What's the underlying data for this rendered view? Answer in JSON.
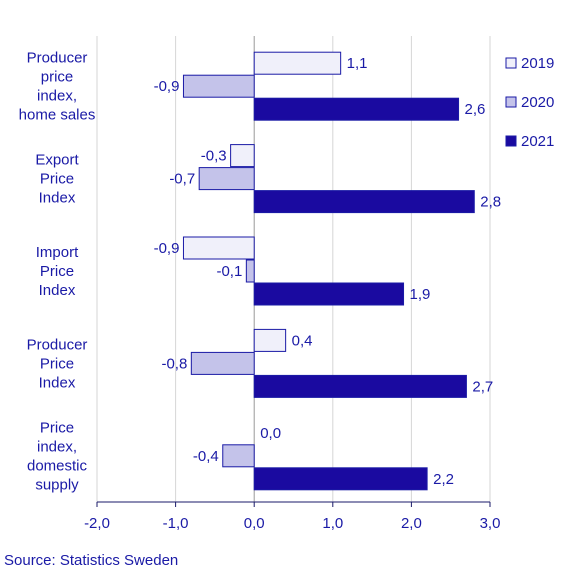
{
  "chart_data": {
    "type": "bar",
    "orientation": "horizontal",
    "categories": [
      [
        "Producer",
        "price",
        "index,",
        "home sales"
      ],
      [
        "Export",
        "Price",
        "Index"
      ],
      [
        "Import",
        "Price",
        "Index"
      ],
      [
        "Producer",
        "Price",
        "Index"
      ],
      [
        "Price",
        "index,",
        "domestic",
        "supply"
      ]
    ],
    "series": [
      {
        "name": "2019",
        "values": [
          1.1,
          -0.3,
          -0.9,
          0.4,
          0.0
        ],
        "labels": [
          "1,1",
          "-0,3",
          "-0,9",
          "0,4",
          "0,0"
        ],
        "color": "#f0f0fa"
      },
      {
        "name": "2020",
        "values": [
          -0.9,
          -0.7,
          -0.1,
          -0.8,
          -0.4
        ],
        "labels": [
          "-0,9",
          "-0,7",
          "-0,1",
          "-0,8",
          "-0,4"
        ],
        "color": "#c4c3ea"
      },
      {
        "name": "2021",
        "values": [
          2.6,
          2.8,
          1.9,
          2.7,
          2.2
        ],
        "labels": [
          "2,6",
          "2,8",
          "1,9",
          "2,7",
          "2,2"
        ],
        "color": "#1a0aa0"
      }
    ],
    "xlim": [
      -2.0,
      3.0
    ],
    "xticks": [
      -2.0,
      -1.0,
      0.0,
      1.0,
      2.0,
      3.0
    ],
    "xtick_labels": [
      "-2,0",
      "-1,0",
      "0,0",
      "1,0",
      "2,0",
      "3,0"
    ],
    "grid": "vertical",
    "legend_position": "right",
    "bar_edge_color": "#1a1aa6"
  },
  "source": "Source: Statistics Sweden"
}
